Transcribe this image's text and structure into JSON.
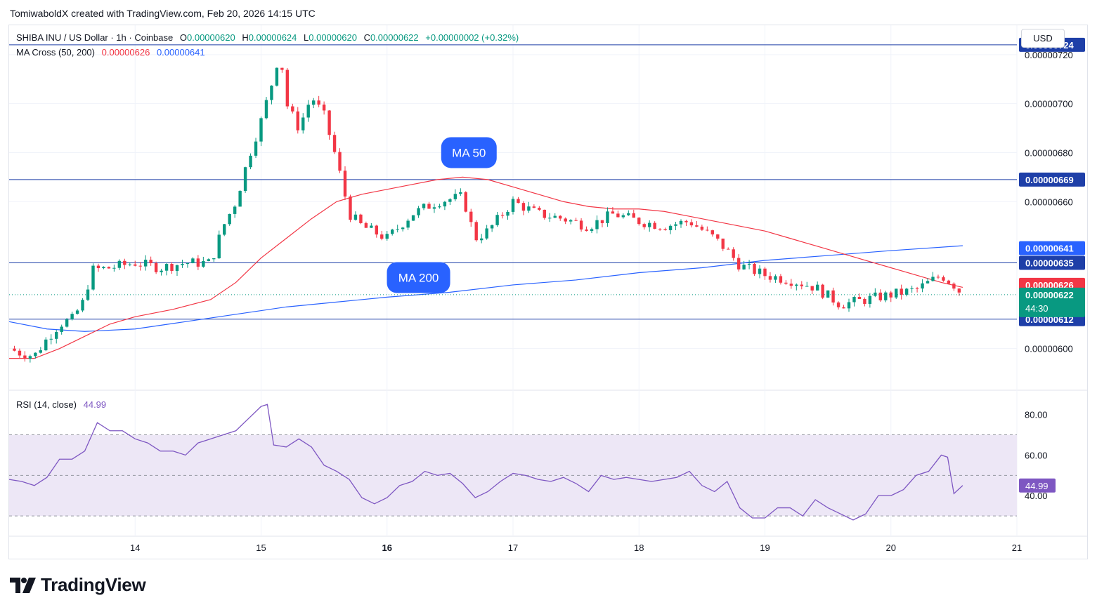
{
  "credit": "TomiwaboldX created with TradingView.com, Feb 20, 2026 14:15 UTC",
  "header": {
    "symbol": "SHIBA INU / US Dollar · 1h · Coinbase",
    "o_label": "O",
    "o_value": "0.00000620",
    "h_label": "H",
    "h_value": "0.00000624",
    "l_label": "L",
    "l_value": "0.00000620",
    "c_label": "C",
    "c_value": "0.00000622",
    "change": "+0.00000002 (+0.32%)"
  },
  "ma_legend": {
    "label": "MA Cross (50, 200)",
    "ma50_value": "0.00000626",
    "ma200_value": "0.00000641"
  },
  "rsi_legend": {
    "label": "RSI (14, close)",
    "value": "44.99"
  },
  "currency_button": "USD",
  "brand": "TradingView",
  "colors": {
    "up": "#089981",
    "down": "#f23645",
    "ma50": "#f23645",
    "ma200": "#2962ff",
    "hline": "#1e3fa8",
    "rsi": "#7e57c2",
    "rsi_band": "#ede7f6",
    "accent": "#2962ff"
  },
  "chart_data": [
    {
      "type": "candlestick",
      "title": "SHIBA INU / US Dollar · 1h · Coinbase",
      "y_ticks": [
        "0.00000720",
        "0.00000700",
        "0.00000680",
        "0.00000660",
        "0.00000600"
      ],
      "x_ticks": [
        "14",
        "15",
        "16",
        "17",
        "18",
        "19",
        "20",
        "21"
      ],
      "x_ticks_bold": [
        "16"
      ],
      "ylim": [
        5.83e-06,
        7.32e-06
      ],
      "xlim_days": [
        13.0,
        21.0
      ],
      "current_price": {
        "label": "0.00000622",
        "countdown": "44:30"
      },
      "horizontal_levels": [
        {
          "value": 7.24e-06,
          "label": "0.00000724"
        },
        {
          "value": 6.69e-06,
          "label": "0.00000669"
        },
        {
          "value": 6.35e-06,
          "label": "0.00000635"
        },
        {
          "value": 6.12e-06,
          "label": "0.00000612"
        }
      ],
      "price_tags": [
        {
          "value": 6.41e-06,
          "label": "0.00000641",
          "series": "MA 200"
        },
        {
          "value": 6.26e-06,
          "label": "0.00000626",
          "series": "MA 50"
        }
      ],
      "annotations": [
        {
          "text": "MA 50",
          "day": 16.65,
          "price": 6.8e-06
        },
        {
          "text": "MA 200",
          "day": 16.25,
          "price": 6.29e-06
        }
      ],
      "series": [
        {
          "name": "MA 50",
          "points": [
            [
              13.0,
              5.96e-06
            ],
            [
              13.2,
              5.96e-06
            ],
            [
              13.4,
              6e-06
            ],
            [
              13.6,
              6.05e-06
            ],
            [
              13.8,
              6.1e-06
            ],
            [
              14.0,
              6.13e-06
            ],
            [
              14.3,
              6.16e-06
            ],
            [
              14.6,
              6.2e-06
            ],
            [
              14.8,
              6.27e-06
            ],
            [
              15.0,
              6.37e-06
            ],
            [
              15.2,
              6.45e-06
            ],
            [
              15.4,
              6.53e-06
            ],
            [
              15.6,
              6.6e-06
            ],
            [
              15.8,
              6.63e-06
            ],
            [
              16.0,
              6.65e-06
            ],
            [
              16.2,
              6.67e-06
            ],
            [
              16.4,
              6.69e-06
            ],
            [
              16.6,
              6.7e-06
            ],
            [
              16.8,
              6.69e-06
            ],
            [
              17.0,
              6.66e-06
            ],
            [
              17.2,
              6.63e-06
            ],
            [
              17.4,
              6.6e-06
            ],
            [
              17.6,
              6.58e-06
            ],
            [
              17.8,
              6.57e-06
            ],
            [
              18.0,
              6.57e-06
            ],
            [
              18.2,
              6.56e-06
            ],
            [
              18.4,
              6.54e-06
            ],
            [
              18.6,
              6.52e-06
            ],
            [
              18.8,
              6.5e-06
            ],
            [
              19.0,
              6.48e-06
            ],
            [
              19.2,
              6.45e-06
            ],
            [
              19.4,
              6.42e-06
            ],
            [
              19.6,
              6.39e-06
            ],
            [
              19.8,
              6.36e-06
            ],
            [
              20.0,
              6.33e-06
            ],
            [
              20.2,
              6.3e-06
            ],
            [
              20.4,
              6.27e-06
            ],
            [
              20.57,
              6.25e-06
            ]
          ]
        },
        {
          "name": "MA 200",
          "points": [
            [
              13.0,
              6.11e-06
            ],
            [
              13.3,
              6.08e-06
            ],
            [
              13.6,
              6.07e-06
            ],
            [
              14.0,
              6.08e-06
            ],
            [
              14.4,
              6.11e-06
            ],
            [
              14.8,
              6.14e-06
            ],
            [
              15.2,
              6.17e-06
            ],
            [
              15.6,
              6.19e-06
            ],
            [
              16.0,
              6.21e-06
            ],
            [
              16.5,
              6.23e-06
            ],
            [
              17.0,
              6.26e-06
            ],
            [
              17.5,
              6.28e-06
            ],
            [
              18.0,
              6.31e-06
            ],
            [
              18.5,
              6.33e-06
            ],
            [
              19.0,
              6.36e-06
            ],
            [
              19.5,
              6.38e-06
            ],
            [
              20.0,
              6.4e-06
            ],
            [
              20.57,
              6.42e-06
            ]
          ]
        },
        {
          "name": "Price (close)",
          "points": [
            [
              13.0,
              6e-06
            ],
            [
              13.1,
              5.98e-06
            ],
            [
              13.2,
              5.97e-06
            ],
            [
              13.3,
              6.04e-06
            ],
            [
              13.4,
              6.1e-06
            ],
            [
              13.5,
              6.12e-06
            ],
            [
              13.6,
              6.2e-06
            ],
            [
              13.65,
              6.32e-06
            ],
            [
              13.8,
              6.33e-06
            ],
            [
              14.0,
              6.35e-06
            ],
            [
              14.2,
              6.33e-06
            ],
            [
              14.4,
              6.35e-06
            ],
            [
              14.6,
              6.35e-06
            ],
            [
              14.7,
              6.5e-06
            ],
            [
              14.8,
              6.6e-06
            ],
            [
              14.9,
              6.78e-06
            ],
            [
              15.0,
              6.93e-06
            ],
            [
              15.1,
              7.11e-06
            ],
            [
              15.15,
              7.22e-06
            ],
            [
              15.2,
              7e-06
            ],
            [
              15.3,
              6.9e-06
            ],
            [
              15.4,
              7.03e-06
            ],
            [
              15.5,
              6.95e-06
            ],
            [
              15.6,
              6.77e-06
            ],
            [
              15.7,
              6.55e-06
            ],
            [
              15.8,
              6.5e-06
            ],
            [
              16.0,
              6.45e-06
            ],
            [
              16.2,
              6.55e-06
            ],
            [
              16.4,
              6.6e-06
            ],
            [
              16.6,
              6.62e-06
            ],
            [
              16.7,
              6.45e-06
            ],
            [
              16.8,
              6.48e-06
            ],
            [
              17.0,
              6.6e-06
            ],
            [
              17.2,
              6.55e-06
            ],
            [
              17.4,
              6.53e-06
            ],
            [
              17.6,
              6.5e-06
            ],
            [
              17.8,
              6.55e-06
            ],
            [
              18.0,
              6.52e-06
            ],
            [
              18.2,
              6.5e-06
            ],
            [
              18.4,
              6.52e-06
            ],
            [
              18.6,
              6.45e-06
            ],
            [
              18.7,
              6.4e-06
            ],
            [
              18.8,
              6.34e-06
            ],
            [
              19.0,
              6.3e-06
            ],
            [
              19.2,
              6.28e-06
            ],
            [
              19.4,
              6.25e-06
            ],
            [
              19.6,
              6.18e-06
            ],
            [
              19.8,
              6.2e-06
            ],
            [
              20.0,
              6.22e-06
            ],
            [
              20.2,
              6.24e-06
            ],
            [
              20.4,
              6.3e-06
            ],
            [
              20.5,
              6.26e-06
            ],
            [
              20.57,
              6.22e-06
            ]
          ]
        }
      ]
    },
    {
      "type": "line",
      "title": "RSI (14, close)",
      "y_ticks": [
        "80.00",
        "60.00",
        "40.00"
      ],
      "ylim": [
        20,
        92
      ],
      "band": [
        30,
        70
      ],
      "midline": 50,
      "current": {
        "value": 44.99,
        "label": "44.99"
      },
      "series": [
        {
          "name": "RSI",
          "points": [
            [
              13.0,
              48
            ],
            [
              13.1,
              47
            ],
            [
              13.2,
              45
            ],
            [
              13.3,
              49
            ],
            [
              13.4,
              58
            ],
            [
              13.5,
              58
            ],
            [
              13.6,
              62
            ],
            [
              13.7,
              76
            ],
            [
              13.8,
              72
            ],
            [
              13.9,
              72
            ],
            [
              14.0,
              68
            ],
            [
              14.1,
              66
            ],
            [
              14.2,
              62
            ],
            [
              14.3,
              62
            ],
            [
              14.4,
              60
            ],
            [
              14.5,
              66
            ],
            [
              14.6,
              68
            ],
            [
              14.7,
              70
            ],
            [
              14.8,
              72
            ],
            [
              14.9,
              78
            ],
            [
              15.0,
              84
            ],
            [
              15.05,
              85
            ],
            [
              15.1,
              65
            ],
            [
              15.2,
              64
            ],
            [
              15.3,
              68
            ],
            [
              15.4,
              64
            ],
            [
              15.5,
              55
            ],
            [
              15.6,
              52
            ],
            [
              15.7,
              48
            ],
            [
              15.8,
              39
            ],
            [
              15.9,
              36
            ],
            [
              16.0,
              39
            ],
            [
              16.1,
              45
            ],
            [
              16.2,
              47
            ],
            [
              16.3,
              52
            ],
            [
              16.4,
              50
            ],
            [
              16.5,
              51
            ],
            [
              16.6,
              46
            ],
            [
              16.7,
              39
            ],
            [
              16.8,
              42
            ],
            [
              16.9,
              47
            ],
            [
              17.0,
              51
            ],
            [
              17.1,
              50
            ],
            [
              17.2,
              48
            ],
            [
              17.3,
              47
            ],
            [
              17.4,
              49
            ],
            [
              17.5,
              46
            ],
            [
              17.6,
              42
            ],
            [
              17.7,
              50
            ],
            [
              17.8,
              48
            ],
            [
              17.9,
              49
            ],
            [
              18.0,
              48
            ],
            [
              18.1,
              47
            ],
            [
              18.2,
              48
            ],
            [
              18.3,
              49
            ],
            [
              18.4,
              52
            ],
            [
              18.5,
              45
            ],
            [
              18.6,
              42
            ],
            [
              18.7,
              47
            ],
            [
              18.8,
              34
            ],
            [
              18.9,
              29
            ],
            [
              19.0,
              29
            ],
            [
              19.1,
              34
            ],
            [
              19.2,
              34
            ],
            [
              19.3,
              30
            ],
            [
              19.4,
              38
            ],
            [
              19.5,
              34
            ],
            [
              19.6,
              31
            ],
            [
              19.7,
              28
            ],
            [
              19.8,
              31
            ],
            [
              19.9,
              40
            ],
            [
              20.0,
              40
            ],
            [
              20.1,
              43
            ],
            [
              20.2,
              50
            ],
            [
              20.3,
              52
            ],
            [
              20.4,
              60
            ],
            [
              20.45,
              59
            ],
            [
              20.5,
              41
            ],
            [
              20.57,
              45
            ]
          ]
        }
      ]
    }
  ]
}
